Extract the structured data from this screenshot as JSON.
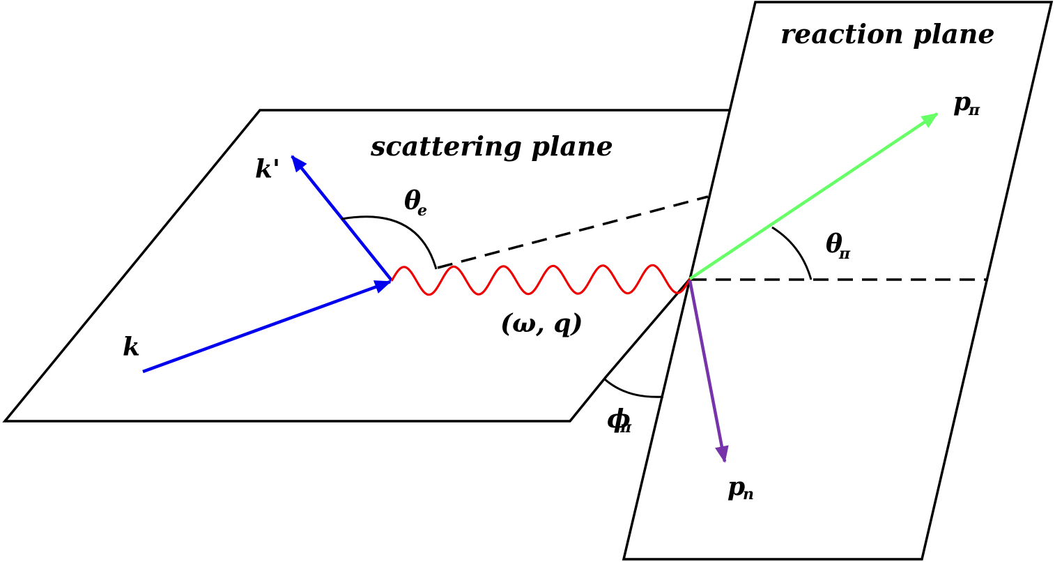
{
  "labels": {
    "reaction_plane": "reaction plane",
    "scattering_plane": "scattering plane",
    "k": "k",
    "k_prime": "k'",
    "theta_e_main": "θ",
    "theta_e_sub": "e",
    "omega_q": "(ω, q)",
    "p_pi_main": "p",
    "p_pi_sub": "π",
    "theta_pi_main": "θ",
    "theta_pi_sub": "π",
    "phi_pi_main": "ϕ",
    "phi_pi_sub": "π",
    "p_n_main": "p",
    "p_n_sub": "n"
  },
  "colors": {
    "electron": "#0000ee",
    "photon": "#ee0000",
    "pion": "#66ff66",
    "nucleon": "#7733aa",
    "outline": "#000000"
  }
}
